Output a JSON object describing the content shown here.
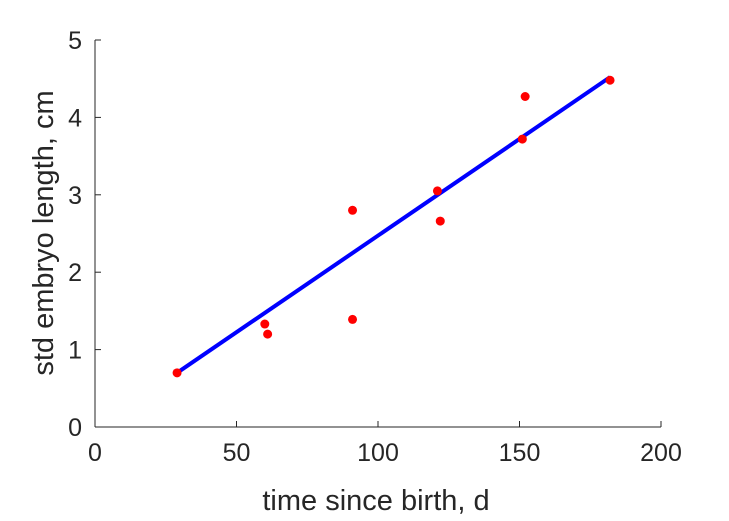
{
  "chart_data": {
    "type": "scatter",
    "xlabel": "time since birth, d",
    "ylabel": "std embryo length, cm",
    "xlim": [
      0,
      200
    ],
    "ylim": [
      0,
      5
    ],
    "xticks": [
      0,
      50,
      100,
      150,
      200
    ],
    "yticks": [
      0,
      1,
      2,
      3,
      4,
      5
    ],
    "grid": false,
    "box": false,
    "series": [
      {
        "kind": "points",
        "color": "#ff0000",
        "x": [
          29,
          60,
          61,
          91,
          91,
          121,
          122,
          151,
          152,
          182
        ],
        "y": [
          0.7,
          1.33,
          1.2,
          1.39,
          2.8,
          3.05,
          2.66,
          3.72,
          4.27,
          4.48
        ]
      },
      {
        "kind": "line",
        "color": "#0000ff",
        "x": [
          29,
          182
        ],
        "y": [
          0.7,
          4.52
        ]
      }
    ]
  }
}
